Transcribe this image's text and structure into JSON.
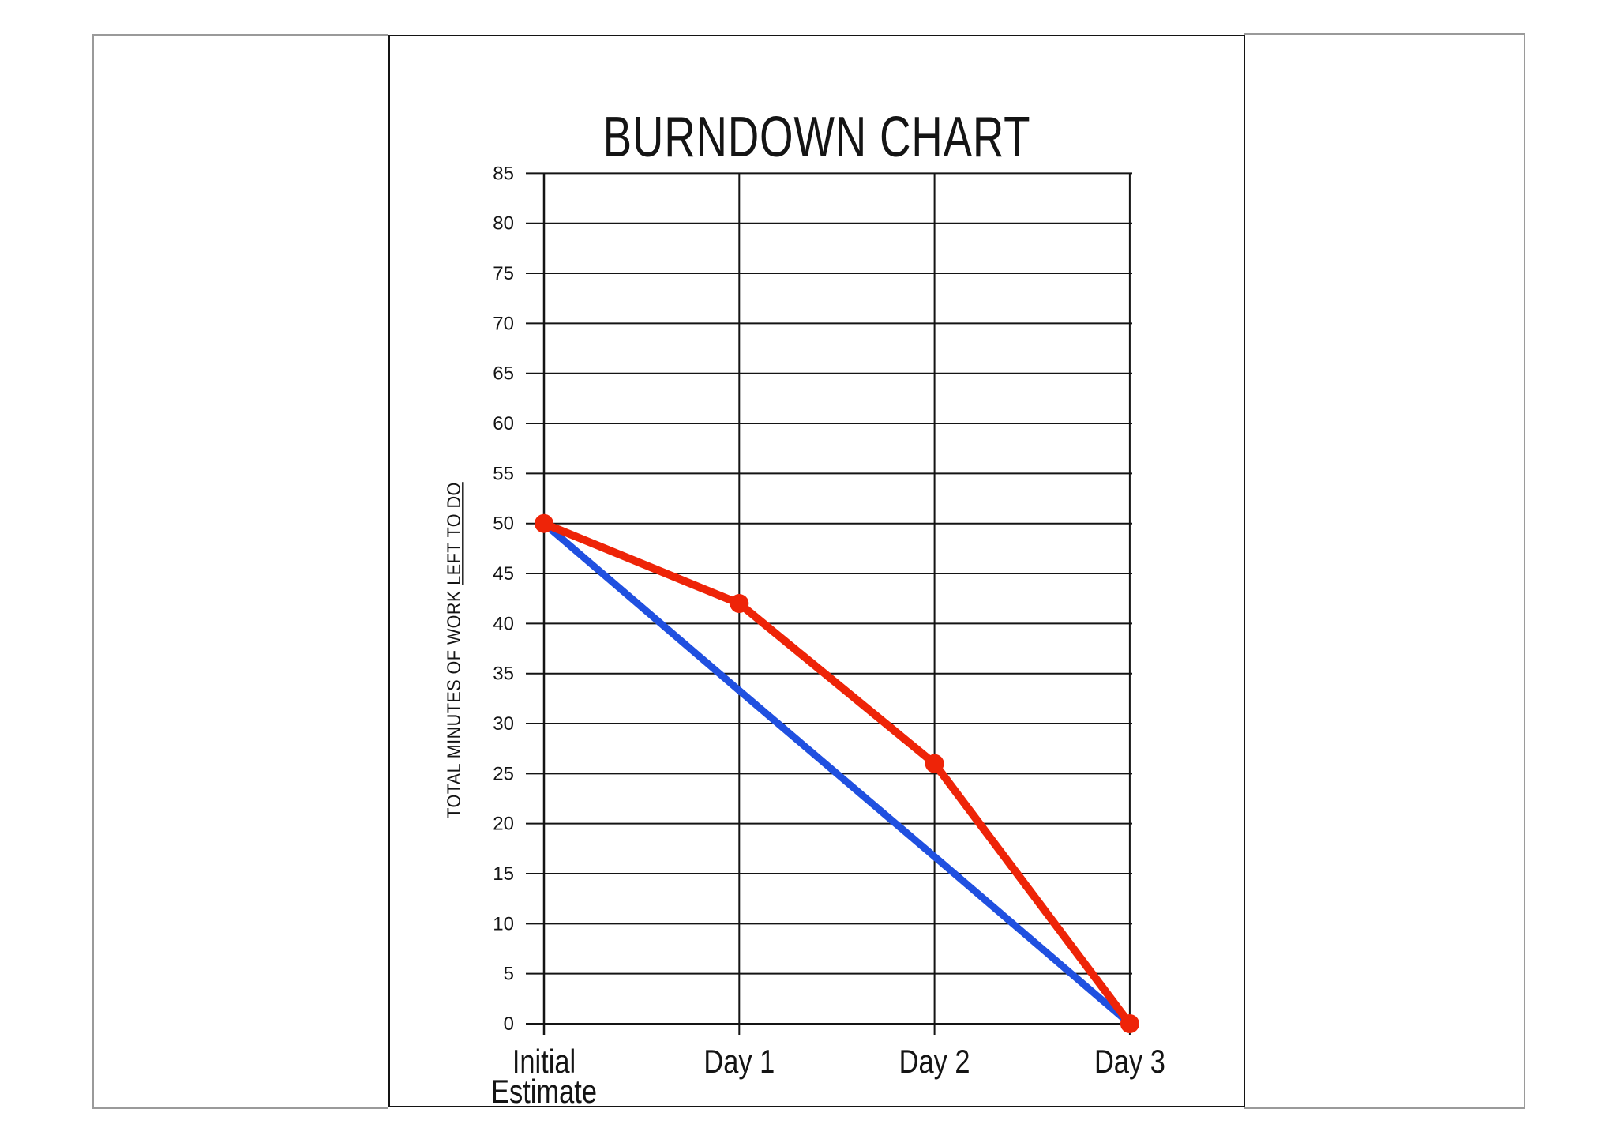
{
  "document": {
    "colors": {
      "background": "#ffffff",
      "side_page_border": "#9a9a9a",
      "center_page_border": "#141414",
      "grid_ink": "#141414"
    },
    "pages": {
      "left_page_content": "",
      "center_page_content": "burndown chart",
      "right_page_content": ""
    }
  },
  "chart_data": {
    "type": "line",
    "title": "BURNDOWN CHART",
    "xlabel": "",
    "ylabel": "TOTAL MINUTES OF WORK LEFT TO DO",
    "ylabel_underlined_suffix": "LEFT TO DO",
    "categories": [
      "Initial Estimate",
      "Day 1",
      "Day 2",
      "Day 3"
    ],
    "category_label_lines": [
      [
        "Initial",
        "Estimate"
      ],
      [
        "Day 1"
      ],
      [
        "Day 2"
      ],
      [
        "Day 3"
      ]
    ],
    "ylim": [
      0,
      85
    ],
    "ytick_step": 5,
    "grid": "on",
    "legend": "none",
    "series": [
      {
        "name": "ideal-burndown-blue",
        "color": "#2050e0",
        "values": [
          50,
          33.3,
          16.7,
          0
        ],
        "markers": false
      },
      {
        "name": "actual-burndown-red",
        "color": "#ee2408",
        "values": [
          50,
          42,
          26,
          0
        ],
        "markers": true
      }
    ]
  }
}
